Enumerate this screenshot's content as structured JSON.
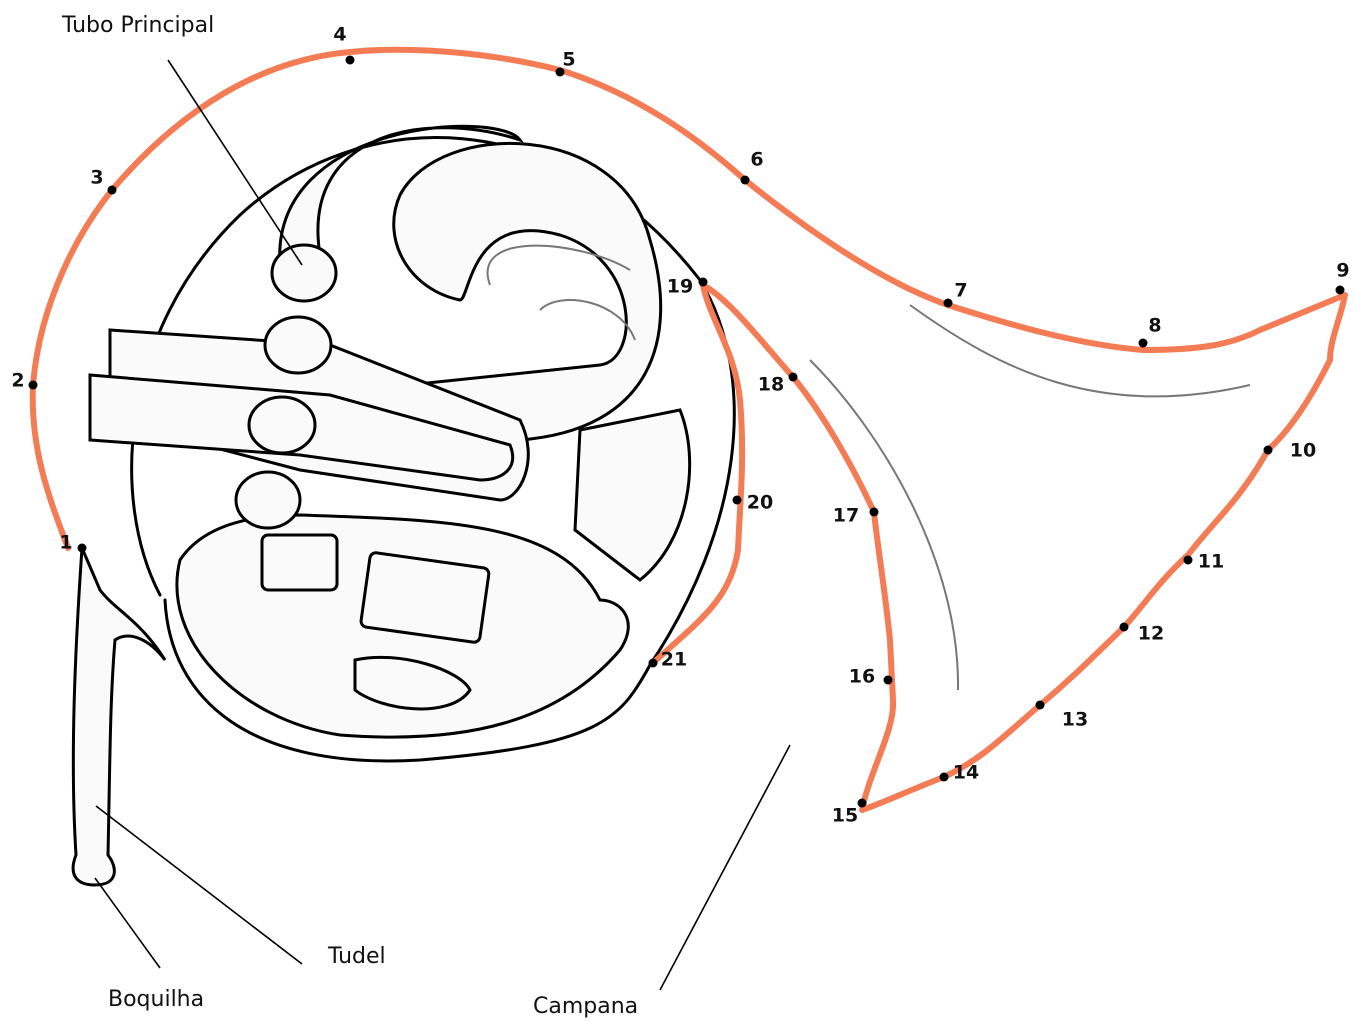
{
  "labels": {
    "main_tube": "Tubo Principal",
    "leadpipe": "Tudel",
    "mouthpiece": "Boquilha",
    "bell": "Campana"
  },
  "dots": [
    1,
    2,
    3,
    4,
    5,
    6,
    7,
    8,
    9,
    10,
    11,
    12,
    13,
    14,
    15,
    16,
    17,
    18,
    19,
    20,
    21
  ]
}
